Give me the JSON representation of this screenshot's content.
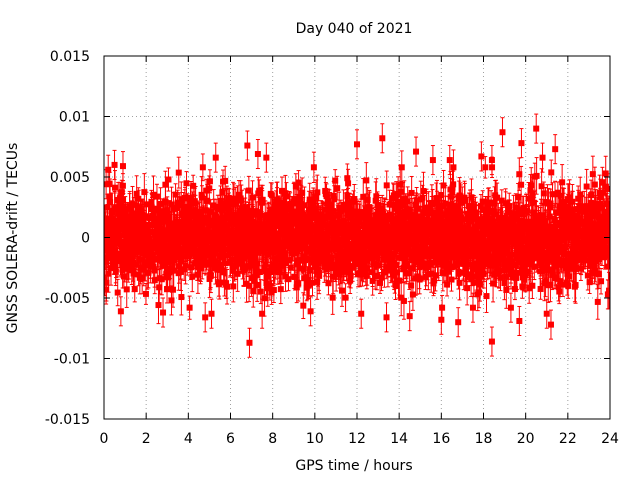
{
  "chart_data": {
    "type": "scatter",
    "title": "Day 040 of 2021",
    "xlabel": "GPS time / hours",
    "ylabel": "GNSS SOLERA-drift / TECUs",
    "xlim": [
      0,
      24
    ],
    "ylim": [
      -0.015,
      0.015
    ],
    "x_ticks": [
      0,
      2,
      4,
      6,
      8,
      10,
      12,
      14,
      16,
      18,
      20,
      22,
      24
    ],
    "x_tick_labels": [
      "0",
      "2",
      "4",
      "6",
      "8",
      "10",
      "12",
      "14",
      "16",
      "18",
      "20",
      "22",
      "24"
    ],
    "y_ticks": [
      -0.015,
      -0.01,
      -0.005,
      0,
      0.005,
      0.01,
      0.015
    ],
    "y_tick_labels": [
      "-0.015",
      "-0.01",
      "-0.005",
      "0",
      "0.005",
      "0.01",
      "0.015"
    ],
    "grid": true,
    "legend": "none",
    "series": [
      {
        "marker": "square",
        "color": "#ff0000",
        "error_bars": true,
        "points_per_hour": 120,
        "typical_spread": 0.0025,
        "typical_error": 0.0012,
        "outliers": [
          {
            "x": 0.1,
            "y": 0.0044,
            "err": 0.0012
          },
          {
            "x": 0.2,
            "y": 0.0056,
            "err": 0.0012
          },
          {
            "x": 0.5,
            "y": 0.006,
            "err": 0.0012
          },
          {
            "x": 0.9,
            "y": 0.0059,
            "err": 0.0012
          },
          {
            "x": 0.8,
            "y": -0.0061,
            "err": 0.0012
          },
          {
            "x": 0.1,
            "y": -0.0043,
            "err": 0.0012
          },
          {
            "x": 2.8,
            "y": -0.0062,
            "err": 0.0012
          },
          {
            "x": 3.2,
            "y": -0.0052,
            "err": 0.0012
          },
          {
            "x": 4.8,
            "y": -0.0066,
            "err": 0.0012
          },
          {
            "x": 5.1,
            "y": -0.0063,
            "err": 0.0012
          },
          {
            "x": 5.3,
            "y": 0.0066,
            "err": 0.0012
          },
          {
            "x": 6.8,
            "y": 0.0076,
            "err": 0.0012
          },
          {
            "x": 6.9,
            "y": -0.0087,
            "err": 0.0012
          },
          {
            "x": 7.3,
            "y": 0.0069,
            "err": 0.0012
          },
          {
            "x": 7.5,
            "y": -0.0063,
            "err": 0.0012
          },
          {
            "x": 7.7,
            "y": 0.0066,
            "err": 0.0012
          },
          {
            "x": 9.8,
            "y": -0.0061,
            "err": 0.0012
          },
          {
            "x": 12.0,
            "y": 0.0077,
            "err": 0.0012
          },
          {
            "x": 12.2,
            "y": -0.0063,
            "err": 0.0012
          },
          {
            "x": 13.2,
            "y": 0.0082,
            "err": 0.0012
          },
          {
            "x": 13.4,
            "y": -0.0066,
            "err": 0.0012
          },
          {
            "x": 14.5,
            "y": -0.0065,
            "err": 0.0012
          },
          {
            "x": 14.8,
            "y": 0.0071,
            "err": 0.0012
          },
          {
            "x": 15.6,
            "y": 0.0064,
            "err": 0.0012
          },
          {
            "x": 16.0,
            "y": -0.0068,
            "err": 0.0012
          },
          {
            "x": 16.4,
            "y": 0.0064,
            "err": 0.0012
          },
          {
            "x": 16.8,
            "y": -0.007,
            "err": 0.0012
          },
          {
            "x": 17.5,
            "y": -0.0058,
            "err": 0.0012
          },
          {
            "x": 17.9,
            "y": 0.0067,
            "err": 0.0012
          },
          {
            "x": 18.4,
            "y": -0.0086,
            "err": 0.0012
          },
          {
            "x": 18.4,
            "y": 0.0064,
            "err": 0.0012
          },
          {
            "x": 18.9,
            "y": 0.0087,
            "err": 0.0012
          },
          {
            "x": 19.3,
            "y": -0.0058,
            "err": 0.0012
          },
          {
            "x": 19.7,
            "y": -0.0069,
            "err": 0.0012
          },
          {
            "x": 19.8,
            "y": 0.0078,
            "err": 0.0012
          },
          {
            "x": 20.5,
            "y": 0.009,
            "err": 0.0012
          },
          {
            "x": 20.8,
            "y": 0.0066,
            "err": 0.0012
          },
          {
            "x": 21.0,
            "y": -0.0063,
            "err": 0.0012
          },
          {
            "x": 21.2,
            "y": -0.0072,
            "err": 0.0012
          },
          {
            "x": 21.4,
            "y": 0.0073,
            "err": 0.0012
          },
          {
            "x": 23.9,
            "y": -0.0047,
            "err": 0.0012
          }
        ]
      }
    ]
  }
}
